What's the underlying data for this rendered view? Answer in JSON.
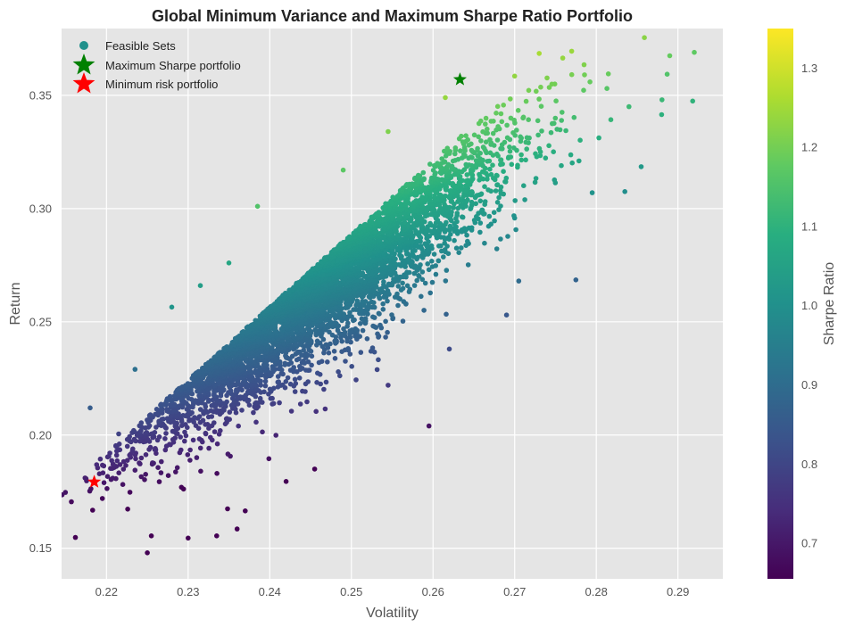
{
  "chart_data": {
    "type": "scatter",
    "title": "Global Minimum Variance and Maximum Sharpe Ratio Portfolio",
    "xlabel": "Volatility",
    "ylabel": "Return",
    "xlim": [
      0.2145,
      0.2955
    ],
    "ylim": [
      0.1365,
      0.3795
    ],
    "xticks": [
      "0.22",
      "0.23",
      "0.24",
      "0.25",
      "0.26",
      "0.27",
      "0.28",
      "0.29"
    ],
    "yticks": [
      "0.15",
      "0.20",
      "0.25",
      "0.30",
      "0.35"
    ],
    "grid": true,
    "background": "#e5e5e5",
    "colormap": "viridis",
    "colorbar": {
      "label": "Sharpe Ratio",
      "range": [
        0.655,
        1.35
      ],
      "ticks": [
        "0.7",
        "0.8",
        "0.9",
        "1.0",
        "1.1",
        "1.2",
        "1.3"
      ]
    },
    "legend": {
      "placement": "top-left",
      "entries": [
        "Feasible Sets",
        "Maximum Sharpe portfolio",
        "Minimum risk portfolio"
      ]
    },
    "feasible_set": {
      "name": "Feasible Sets",
      "color_by": "Sharpe Ratio",
      "description_points": [
        {
          "x": 0.225,
          "y": 0.148
        },
        {
          "x": 0.2255,
          "y": 0.1555
        },
        {
          "x": 0.23,
          "y": 0.1545
        },
        {
          "x": 0.2335,
          "y": 0.1555
        },
        {
          "x": 0.236,
          "y": 0.1585
        },
        {
          "x": 0.2195,
          "y": 0.172
        },
        {
          "x": 0.2215,
          "y": 0.2005
        },
        {
          "x": 0.218,
          "y": 0.212
        },
        {
          "x": 0.2235,
          "y": 0.229
        },
        {
          "x": 0.228,
          "y": 0.2565
        },
        {
          "x": 0.2315,
          "y": 0.266
        },
        {
          "x": 0.235,
          "y": 0.276
        },
        {
          "x": 0.2385,
          "y": 0.301
        },
        {
          "x": 0.249,
          "y": 0.317
        },
        {
          "x": 0.2545,
          "y": 0.334
        },
        {
          "x": 0.2615,
          "y": 0.349
        },
        {
          "x": 0.27,
          "y": 0.3585
        },
        {
          "x": 0.273,
          "y": 0.3685
        },
        {
          "x": 0.2785,
          "y": 0.3635
        },
        {
          "x": 0.289,
          "y": 0.3675
        },
        {
          "x": 0.292,
          "y": 0.369
        },
        {
          "x": 0.2918,
          "y": 0.3475
        },
        {
          "x": 0.288,
          "y": 0.3415
        },
        {
          "x": 0.284,
          "y": 0.345
        },
        {
          "x": 0.2855,
          "y": 0.3185
        },
        {
          "x": 0.2835,
          "y": 0.3075
        },
        {
          "x": 0.2795,
          "y": 0.307
        },
        {
          "x": 0.2775,
          "y": 0.2685
        },
        {
          "x": 0.269,
          "y": 0.253
        },
        {
          "x": 0.2705,
          "y": 0.268
        },
        {
          "x": 0.262,
          "y": 0.238
        },
        {
          "x": 0.2595,
          "y": 0.204
        },
        {
          "x": 0.2545,
          "y": 0.222
        },
        {
          "x": 0.2455,
          "y": 0.185
        },
        {
          "x": 0.242,
          "y": 0.1795
        },
        {
          "x": 0.237,
          "y": 0.1665
        }
      ]
    },
    "special_points": [
      {
        "name": "Maximum Sharpe portfolio",
        "x": 0.2633,
        "y": 0.357,
        "color": "#008000",
        "marker": "star"
      },
      {
        "name": "Minimum risk portfolio",
        "x": 0.2185,
        "y": 0.1793,
        "color": "#ff0000",
        "marker": "star"
      }
    ]
  }
}
